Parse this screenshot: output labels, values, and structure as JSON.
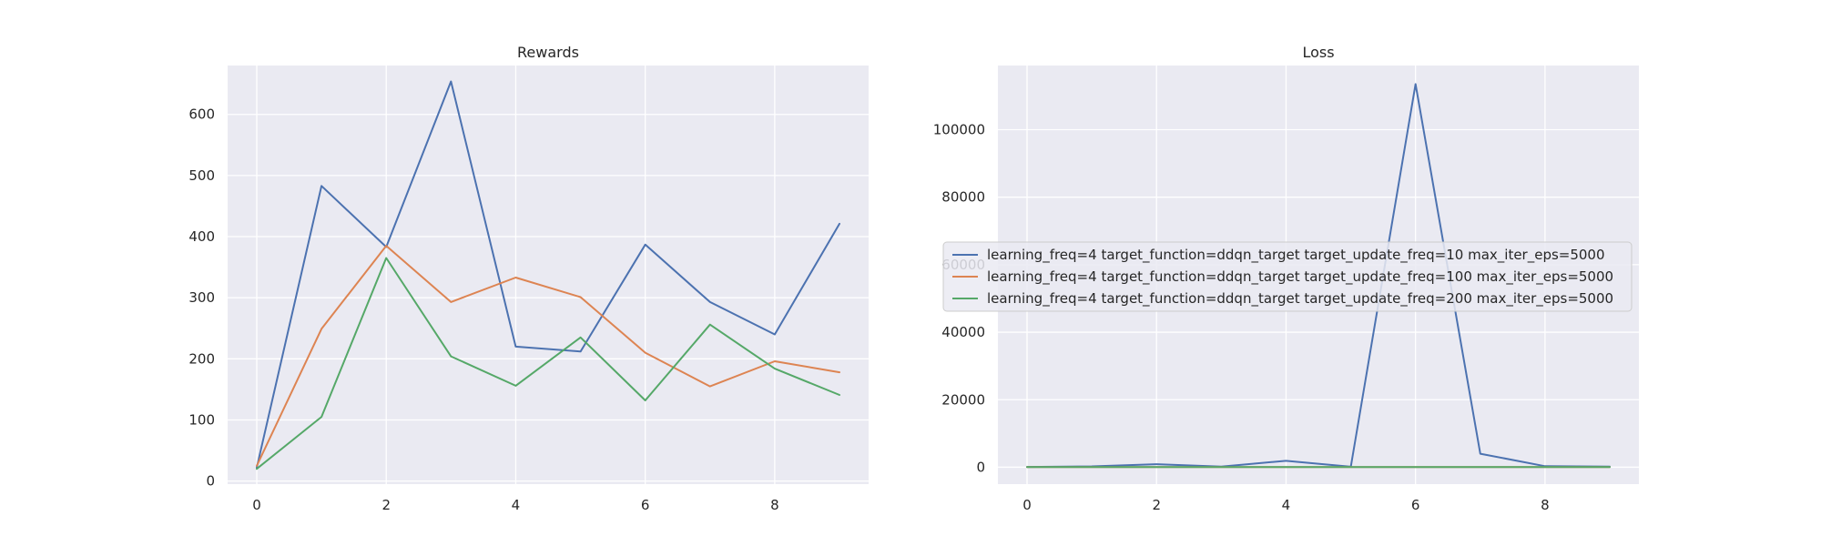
{
  "chart_data": [
    {
      "type": "line",
      "title": "Rewards",
      "xlabel": "",
      "ylabel": "",
      "x": [
        0,
        1,
        2,
        3,
        4,
        5,
        6,
        7,
        8,
        9
      ],
      "xlim": [
        -0.45,
        9.45
      ],
      "ylim": [
        -5,
        680
      ],
      "xticks": [
        0,
        2,
        4,
        6,
        8
      ],
      "yticks": [
        0,
        100,
        200,
        300,
        400,
        500,
        600
      ],
      "grid": true,
      "series": [
        {
          "color": "#4c72b0",
          "values": [
            22,
            483,
            383,
            654,
            220,
            212,
            387,
            293,
            240,
            421
          ]
        },
        {
          "color": "#dd8452",
          "values": [
            25,
            249,
            385,
            293,
            333,
            301,
            210,
            155,
            196,
            178
          ]
        },
        {
          "color": "#55a868",
          "values": [
            20,
            105,
            365,
            204,
            156,
            235,
            132,
            256,
            184,
            141
          ]
        }
      ]
    },
    {
      "type": "line",
      "title": "Loss",
      "xlabel": "",
      "ylabel": "",
      "x": [
        0,
        1,
        2,
        3,
        4,
        5,
        6,
        7,
        8,
        9
      ],
      "xlim": [
        -0.45,
        9.45
      ],
      "ylim": [
        -5000,
        119000
      ],
      "xticks": [
        0,
        2,
        4,
        6,
        8
      ],
      "yticks": [
        0,
        20000,
        40000,
        60000,
        80000,
        100000
      ],
      "grid": true,
      "legend_position": "center-left",
      "series": [
        {
          "name": "learning_freq=4 target_function=ddqn_target target_update_freq=10 max_iter_eps=5000",
          "color": "#4c72b0",
          "values": [
            100,
            250,
            900,
            200,
            1900,
            150,
            113500,
            4000,
            300,
            200
          ]
        },
        {
          "name": "learning_freq=4 target_function=ddqn_target target_update_freq=100 max_iter_eps=5000",
          "color": "#dd8452",
          "values": [
            40,
            50,
            60,
            40,
            50,
            40,
            50,
            40,
            50,
            40
          ]
        },
        {
          "name": "learning_freq=4 target_function=ddqn_target target_update_freq=200 max_iter_eps=5000",
          "color": "#55a868",
          "values": [
            30,
            30,
            40,
            30,
            30,
            30,
            30,
            30,
            30,
            30
          ]
        }
      ]
    }
  ]
}
